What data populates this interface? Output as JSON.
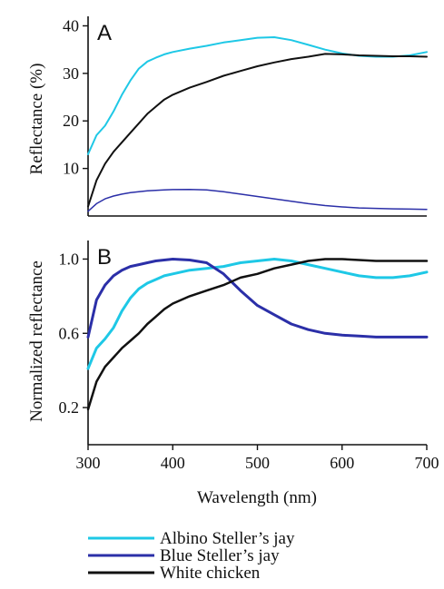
{
  "chart_data": [
    {
      "type": "line",
      "panel_label": "A",
      "ylabel": "Reflectance (%)",
      "xlabel": "",
      "xlim": [
        300,
        700
      ],
      "ylim": [
        0,
        42
      ],
      "yticks": [
        10,
        20,
        30,
        40
      ],
      "xticks": [],
      "x": [
        300,
        310,
        320,
        330,
        340,
        350,
        360,
        370,
        380,
        390,
        400,
        420,
        440,
        460,
        480,
        500,
        520,
        540,
        560,
        580,
        600,
        620,
        640,
        660,
        680,
        700
      ],
      "series": [
        {
          "name": "Albino Steller's jay",
          "color": "#1ec8e6",
          "width": 2,
          "values": [
            13,
            17,
            19,
            22,
            25.5,
            28.5,
            31,
            32.5,
            33.3,
            34,
            34.5,
            35.2,
            35.8,
            36.5,
            37,
            37.5,
            37.6,
            37,
            36,
            35,
            34.2,
            33.7,
            33.5,
            33.5,
            33.8,
            34.5
          ]
        },
        {
          "name": "Blue Steller's jay",
          "color": "#2b2fa8",
          "width": 1.5,
          "values": [
            1,
            2.6,
            3.6,
            4.2,
            4.6,
            4.9,
            5.1,
            5.3,
            5.4,
            5.5,
            5.55,
            5.6,
            5.5,
            5.1,
            4.6,
            4.1,
            3.6,
            3.1,
            2.6,
            2.2,
            1.9,
            1.7,
            1.6,
            1.5,
            1.45,
            1.4
          ]
        },
        {
          "name": "White chicken",
          "color": "#111111",
          "width": 2,
          "values": [
            2,
            7.5,
            11,
            13.5,
            15.5,
            17.5,
            19.5,
            21.5,
            23,
            24.5,
            25.5,
            27,
            28.2,
            29.5,
            30.5,
            31.5,
            32.3,
            33,
            33.5,
            34.1,
            34,
            33.8,
            33.7,
            33.6,
            33.6,
            33.5
          ]
        }
      ]
    },
    {
      "type": "line",
      "panel_label": "B",
      "ylabel": "Normalized reflectance",
      "xlabel": "Wavelength (nm)",
      "xlim": [
        300,
        700
      ],
      "ylim": [
        0,
        1.1
      ],
      "yticks": [
        0.2,
        0.6,
        1.0
      ],
      "ytick_labels": [
        "0.2",
        "0.6",
        "1.0"
      ],
      "xticks": [
        300,
        400,
        500,
        600,
        700
      ],
      "x": [
        300,
        310,
        320,
        330,
        340,
        350,
        360,
        370,
        380,
        390,
        400,
        420,
        440,
        460,
        480,
        500,
        520,
        540,
        560,
        580,
        600,
        620,
        640,
        660,
        680,
        700
      ],
      "series": [
        {
          "name": "Albino Steller's jay",
          "color": "#1ec8e6",
          "width": 3,
          "values": [
            0.41,
            0.52,
            0.57,
            0.63,
            0.72,
            0.79,
            0.84,
            0.87,
            0.89,
            0.91,
            0.92,
            0.94,
            0.95,
            0.96,
            0.98,
            0.99,
            1.0,
            0.99,
            0.97,
            0.95,
            0.93,
            0.91,
            0.9,
            0.9,
            0.91,
            0.93
          ]
        },
        {
          "name": "Blue Steller's jay",
          "color": "#2b2fa8",
          "width": 3,
          "values": [
            0.58,
            0.78,
            0.86,
            0.91,
            0.94,
            0.96,
            0.97,
            0.98,
            0.99,
            0.995,
            1.0,
            0.995,
            0.98,
            0.92,
            0.83,
            0.75,
            0.7,
            0.65,
            0.62,
            0.6,
            0.59,
            0.585,
            0.58,
            0.58,
            0.58,
            0.58
          ]
        },
        {
          "name": "White chicken",
          "color": "#111111",
          "width": 2.5,
          "values": [
            0.19,
            0.34,
            0.42,
            0.47,
            0.52,
            0.56,
            0.6,
            0.65,
            0.69,
            0.73,
            0.76,
            0.8,
            0.83,
            0.86,
            0.9,
            0.92,
            0.95,
            0.97,
            0.99,
            1.0,
            1.0,
            0.995,
            0.99,
            0.99,
            0.99,
            0.99
          ]
        }
      ]
    }
  ],
  "legend": {
    "placement": "bottom",
    "entries": [
      {
        "label": "Albino Steller’s jay",
        "color": "#1ec8e6"
      },
      {
        "label": "Blue Steller’s jay",
        "color": "#2b2fa8"
      },
      {
        "label": "White chicken",
        "color": "#111111"
      }
    ]
  }
}
